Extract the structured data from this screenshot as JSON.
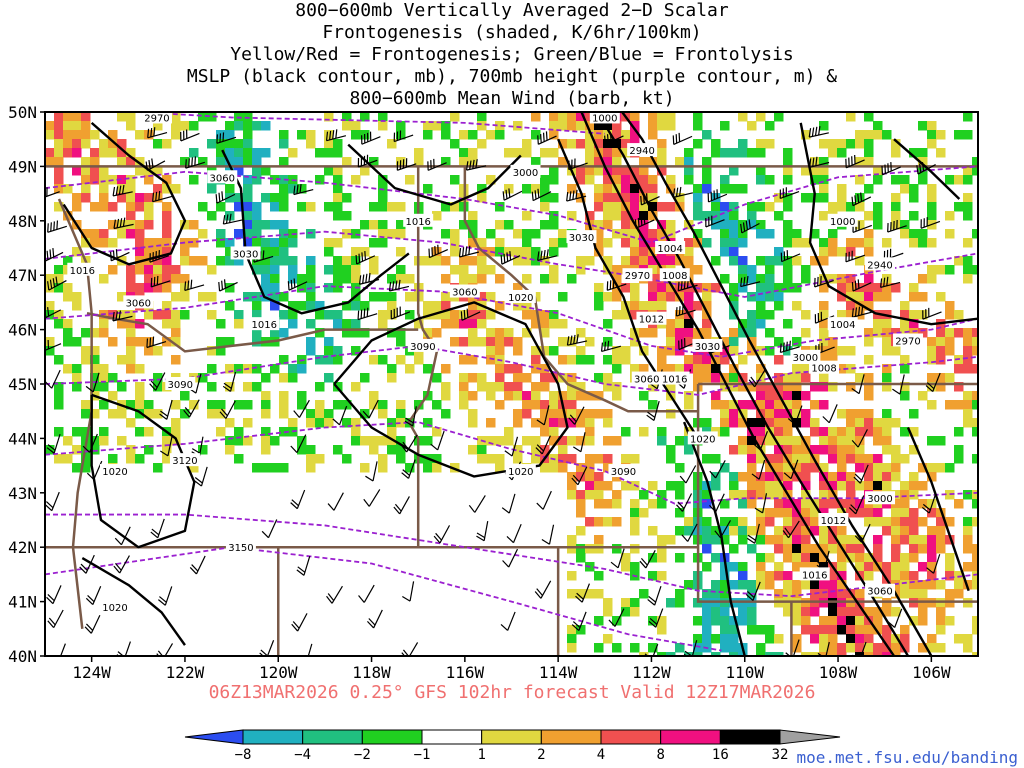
{
  "title_lines": [
    "800−600mb Vertically Averaged 2−D Scalar",
    "Frontogenesis (shaded, K/6hr/100km)",
    "Yellow/Red = Frontogenesis;  Green/Blue = Frontolysis",
    "MSLP (black contour, mb), 700mb height (purple contour, m) &",
    "800−600mb Mean Wind (barb, kt)"
  ],
  "valid_line": "06Z13MAR2026 0.25° GFS 102hr forecast Valid 12Z17MAR2026",
  "credit": "moe.met.fsu.edu/banding",
  "map": {
    "lat_range": [
      40,
      50
    ],
    "lon_range": [
      -125,
      -105
    ],
    "lat_labels": [
      "50N",
      "49N",
      "48N",
      "47N",
      "46N",
      "45N",
      "44N",
      "43N",
      "42N",
      "41N",
      "40N"
    ],
    "lon_labels": [
      "124W",
      "122W",
      "120W",
      "118W",
      "116W",
      "114W",
      "112W",
      "110W",
      "108W",
      "106W"
    ],
    "lon_values": [
      -124,
      -122,
      -120,
      -118,
      -116,
      -114,
      -112,
      -110,
      -108,
      -106
    ],
    "mslp_labels": [
      "1000",
      "1004",
      "1008",
      "1012",
      "1016",
      "1020"
    ],
    "height_labels": [
      "2940",
      "2970",
      "3000",
      "3030",
      "3060",
      "3090",
      "3120",
      "3150"
    ],
    "contour_label_instances": [
      {
        "text": "2970",
        "lon": -122.6,
        "lat": 49.9
      },
      {
        "text": "3060",
        "lon": -121.2,
        "lat": 48.8
      },
      {
        "text": "1016",
        "lon": -117.0,
        "lat": 48.0
      },
      {
        "text": "3030",
        "lon": -120.7,
        "lat": 47.4
      },
      {
        "text": "1016",
        "lon": -124.2,
        "lat": 47.1
      },
      {
        "text": "3060",
        "lon": -123.0,
        "lat": 46.5
      },
      {
        "text": "1016",
        "lon": -120.3,
        "lat": 46.1
      },
      {
        "text": "3000",
        "lon": -114.7,
        "lat": 48.9
      },
      {
        "text": "3030",
        "lon": -113.5,
        "lat": 47.7
      },
      {
        "text": "1000",
        "lon": -113.0,
        "lat": 49.9
      },
      {
        "text": "2940",
        "lon": -112.2,
        "lat": 49.3
      },
      {
        "text": "1004",
        "lon": -111.6,
        "lat": 47.5
      },
      {
        "text": "2970",
        "lon": -112.3,
        "lat": 47.0
      },
      {
        "text": "1008",
        "lon": -111.5,
        "lat": 47.0
      },
      {
        "text": "3060",
        "lon": -116.0,
        "lat": 46.7
      },
      {
        "text": "1020",
        "lon": -114.8,
        "lat": 46.6
      },
      {
        "text": "1012",
        "lon": -112.0,
        "lat": 46.2
      },
      {
        "text": "3090",
        "lon": -116.9,
        "lat": 45.7
      },
      {
        "text": "3030",
        "lon": -110.8,
        "lat": 45.7
      },
      {
        "text": "3060",
        "lon": -112.1,
        "lat": 45.1
      },
      {
        "text": "1016",
        "lon": -111.5,
        "lat": 45.1
      },
      {
        "text": "3090",
        "lon": -122.1,
        "lat": 45.0
      },
      {
        "text": "1020",
        "lon": -110.9,
        "lat": 44.0
      },
      {
        "text": "1020",
        "lon": -114.8,
        "lat": 43.4
      },
      {
        "text": "3090",
        "lon": -112.6,
        "lat": 43.4
      },
      {
        "text": "3120",
        "lon": -122.0,
        "lat": 43.6
      },
      {
        "text": "1020",
        "lon": -123.5,
        "lat": 43.4
      },
      {
        "text": "1000",
        "lon": -107.9,
        "lat": 48.0
      },
      {
        "text": "2940",
        "lon": -107.1,
        "lat": 47.2
      },
      {
        "text": "1004",
        "lon": -107.9,
        "lat": 46.1
      },
      {
        "text": "2970",
        "lon": -106.5,
        "lat": 45.8
      },
      {
        "text": "3000",
        "lon": -108.7,
        "lat": 45.5
      },
      {
        "text": "1008",
        "lon": -108.3,
        "lat": 45.3
      },
      {
        "text": "3000",
        "lon": -107.1,
        "lat": 42.9
      },
      {
        "text": "1012",
        "lon": -108.1,
        "lat": 42.5
      },
      {
        "text": "3150",
        "lon": -120.8,
        "lat": 42.0
      },
      {
        "text": "1016",
        "lon": -108.5,
        "lat": 41.5
      },
      {
        "text": "3060",
        "lon": -107.1,
        "lat": 41.2
      },
      {
        "text": "1020",
        "lon": -123.5,
        "lat": 40.9
      }
    ]
  },
  "colorbar": {
    "tick_labels": [
      "−8",
      "−4",
      "−2",
      "−1",
      "1",
      "2",
      "4",
      "8",
      "16",
      "32"
    ],
    "colors": [
      "#2b4df0",
      "#20b0c0",
      "#20c080",
      "#20d020",
      "#ffffff",
      "#e0d840",
      "#f0a030",
      "#f05050",
      "#f01080",
      "#000000",
      "#a0a0a0"
    ]
  },
  "colors": {
    "mslp": "#000000",
    "height": "#9b20d0",
    "borders": "#7a5a48",
    "grid_text": "#000000"
  }
}
